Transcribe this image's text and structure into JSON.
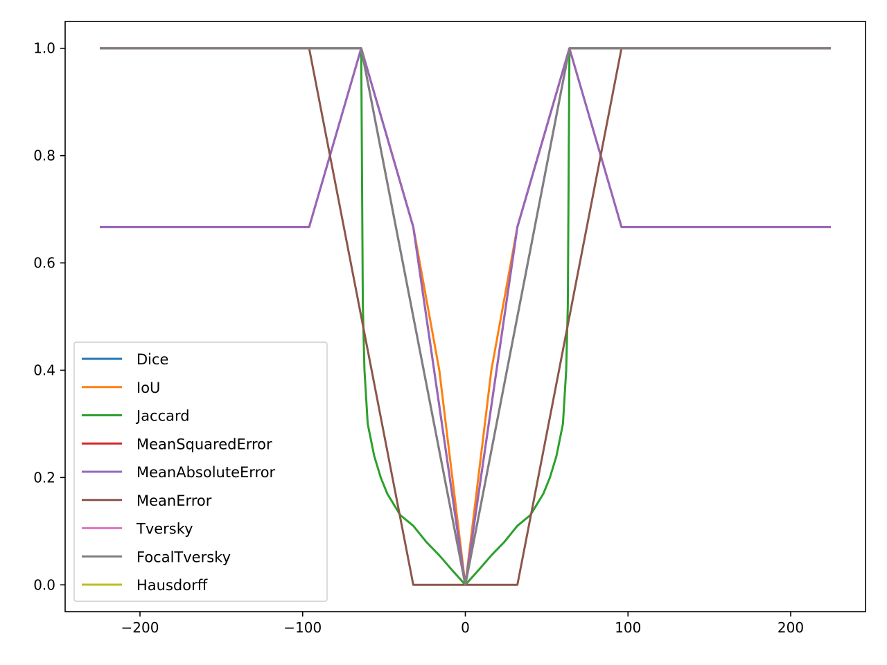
{
  "chart_data": {
    "type": "line",
    "title": "",
    "xlabel": "",
    "ylabel": "",
    "xlim": [
      -246,
      246
    ],
    "ylim": [
      -0.05,
      1.05
    ],
    "xticks": [
      -200,
      -100,
      0,
      100,
      200
    ],
    "yticks": [
      0.0,
      0.2,
      0.4,
      0.6,
      0.8,
      1.0
    ],
    "xtick_labels": [
      "−200",
      "−100",
      "0",
      "100",
      "200"
    ],
    "ytick_labels": [
      "0.0",
      "0.2",
      "0.4",
      "0.6",
      "0.8",
      "1.0"
    ],
    "grid": false,
    "legend_position": "lower-left",
    "series": [
      {
        "name": "Dice",
        "color": "#1f77b4",
        "x": [
          -224,
          -96,
          -64,
          -48,
          -32,
          0,
          32,
          48,
          64,
          96,
          224
        ],
        "y": [
          1.0,
          1.0,
          1.0,
          0.75,
          0.5,
          0.0,
          0.5,
          0.75,
          1.0,
          1.0,
          1.0
        ]
      },
      {
        "name": "IoU",
        "color": "#ff7f0e",
        "x": [
          -224,
          -96,
          -64,
          -32,
          -16,
          0,
          16,
          32,
          64,
          96,
          224
        ],
        "y": [
          1.0,
          1.0,
          1.0,
          0.667,
          0.4,
          0.0,
          0.4,
          0.667,
          1.0,
          1.0,
          1.0
        ]
      },
      {
        "name": "Jaccard",
        "color": "#2ca02c",
        "x": [
          -224,
          -96,
          -64,
          -63,
          -62,
          -60,
          -56,
          -52,
          -48,
          -44,
          -40,
          -36,
          -32,
          -24,
          -16,
          -8,
          0,
          8,
          16,
          24,
          32,
          36,
          40,
          44,
          48,
          52,
          56,
          60,
          62,
          63,
          64,
          96,
          224
        ],
        "y": [
          1.0,
          1.0,
          1.0,
          0.52,
          0.4,
          0.3,
          0.24,
          0.2,
          0.17,
          0.15,
          0.13,
          0.12,
          0.11,
          0.08,
          0.055,
          0.027,
          0.0,
          0.027,
          0.055,
          0.08,
          0.11,
          0.12,
          0.13,
          0.15,
          0.17,
          0.2,
          0.24,
          0.3,
          0.4,
          0.52,
          1.0,
          1.0,
          1.0
        ]
      },
      {
        "name": "MeanSquaredError",
        "color": "#d62728",
        "x": [
          -224,
          -96,
          -64,
          -32,
          0,
          32,
          64,
          96,
          224
        ],
        "y": [
          0.667,
          0.667,
          1.0,
          0.667,
          0.0,
          0.667,
          1.0,
          0.667,
          0.667
        ]
      },
      {
        "name": "MeanAbsoluteError",
        "color": "#9467bd",
        "x": [
          -224,
          -96,
          -64,
          -32,
          0,
          32,
          64,
          96,
          224
        ],
        "y": [
          0.667,
          0.667,
          1.0,
          0.667,
          0.0,
          0.667,
          1.0,
          0.667,
          0.667
        ]
      },
      {
        "name": "MeanError",
        "color": "#8c564b",
        "x": [
          -224,
          -96,
          -32,
          0,
          32,
          96,
          224
        ],
        "y": [
          1.0,
          1.0,
          0.0,
          0.0,
          0.0,
          1.0,
          1.0
        ]
      },
      {
        "name": "Tversky",
        "color": "#e377c2",
        "x": [
          -224,
          -96,
          -64,
          -32,
          0,
          32,
          64,
          96,
          224
        ],
        "y": [
          1.0,
          1.0,
          1.0,
          0.5,
          0.0,
          0.5,
          1.0,
          1.0,
          1.0
        ]
      },
      {
        "name": "FocalTversky",
        "color": "#7f7f7f",
        "x": [
          -224,
          -96,
          -64,
          -32,
          0,
          32,
          64,
          96,
          224
        ],
        "y": [
          1.0,
          1.0,
          1.0,
          0.5,
          0.0,
          0.5,
          1.0,
          1.0,
          1.0
        ]
      },
      {
        "name": "Hausdorff",
        "color": "#bcbd22",
        "x": [],
        "y": []
      }
    ]
  }
}
